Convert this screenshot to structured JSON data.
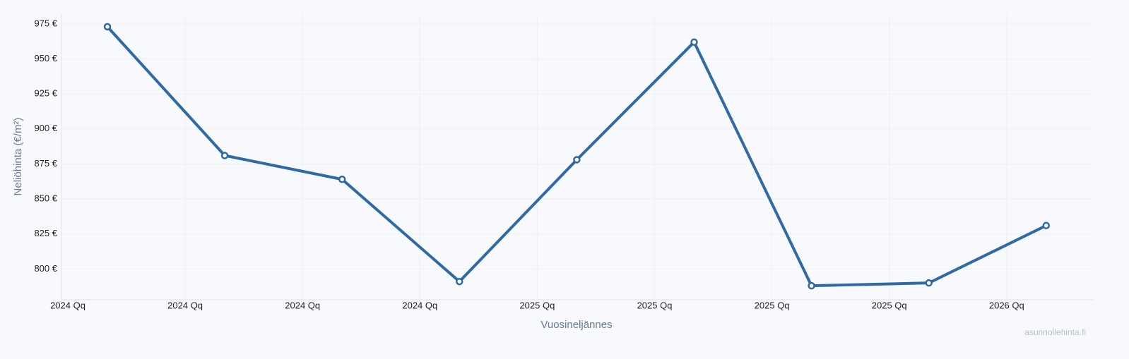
{
  "chart_data": {
    "type": "line",
    "y_label": "Neliöhinta (€/m²)",
    "x_label": "Vuosineljännes",
    "watermark": "asunnollehinta.fi",
    "categories": [
      "2024 Qq",
      "2024 Qq",
      "2024 Qq",
      "2024 Qq",
      "2025 Qq",
      "2025 Qq",
      "2025 Qq",
      "2025 Qq",
      "2026 Qq"
    ],
    "series": [
      {
        "color": "#2f6aa6",
        "values": [
          973,
          881,
          864,
          791,
          878,
          962,
          788,
          790,
          831
        ]
      }
    ],
    "ylim": [
      778,
      982
    ],
    "yticks": [
      {
        "value": 800,
        "label": "800 €"
      },
      {
        "value": 825,
        "label": "825 €"
      },
      {
        "value": 850,
        "label": "850 €"
      },
      {
        "value": 875,
        "label": "875 €"
      },
      {
        "value": 900,
        "label": "900 €"
      },
      {
        "value": 925,
        "label": "925 €"
      },
      {
        "value": 950,
        "label": "950 €"
      },
      {
        "value": 975,
        "label": "975 €"
      }
    ],
    "grid": true
  }
}
